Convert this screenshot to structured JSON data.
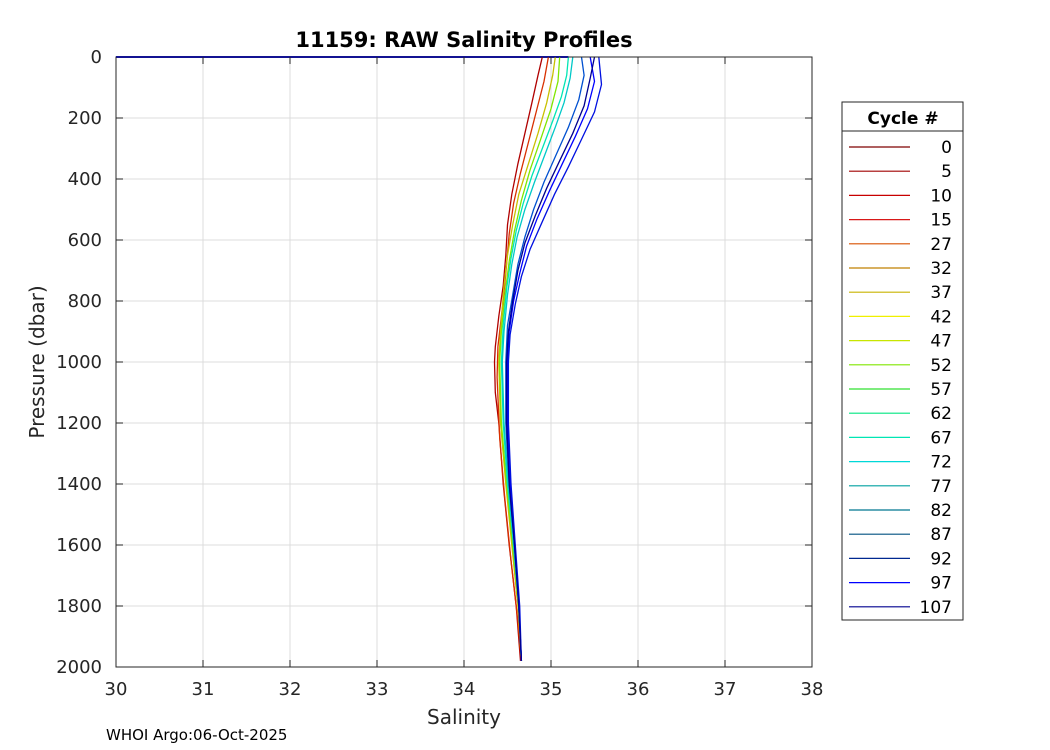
{
  "chart_data": {
    "type": "line",
    "title": "11159: RAW Salinity Profiles",
    "xlabel": "Salinity",
    "ylabel": "Pressure (dbar)",
    "xlim": [
      30,
      38
    ],
    "ylim": [
      0,
      2000
    ],
    "y_reversed": true,
    "grid": true,
    "x_ticks": [
      "30",
      "31",
      "32",
      "33",
      "34",
      "35",
      "36",
      "37",
      "38"
    ],
    "y_ticks": [
      "0",
      "200",
      "400",
      "600",
      "800",
      "1000",
      "1200",
      "1400",
      "1600",
      "1800",
      "2000"
    ],
    "legend": {
      "title": "Cycle #",
      "placement": "right",
      "entries": [
        {
          "label": "0",
          "color": "#7f0000"
        },
        {
          "label": "5",
          "color": "#a00000"
        },
        {
          "label": "10",
          "color": "#c80000"
        },
        {
          "label": "15",
          "color": "#d81818"
        },
        {
          "label": "27",
          "color": "#d85000"
        },
        {
          "label": "32",
          "color": "#c08000"
        },
        {
          "label": "37",
          "color": "#c8b400"
        },
        {
          "label": "42",
          "color": "#f0f000"
        },
        {
          "label": "47",
          "color": "#c8e600"
        },
        {
          "label": "52",
          "color": "#80e600"
        },
        {
          "label": "57",
          "color": "#30e030"
        },
        {
          "label": "62",
          "color": "#00e680"
        },
        {
          "label": "67",
          "color": "#00e6b4"
        },
        {
          "label": "72",
          "color": "#00d8d8"
        },
        {
          "label": "77",
          "color": "#00a0a0"
        },
        {
          "label": "82",
          "color": "#007890"
        },
        {
          "label": "87",
          "color": "#005080"
        },
        {
          "label": "92",
          "color": "#002890"
        },
        {
          "label": "97",
          "color": "#0000ff"
        },
        {
          "label": "107",
          "color": "#00008f"
        }
      ]
    },
    "series": [
      {
        "cycle_group": "early",
        "color": "#b00000",
        "points": [
          [
            34.9,
            0
          ],
          [
            34.85,
            60
          ],
          [
            34.78,
            150
          ],
          [
            34.7,
            250
          ],
          [
            34.62,
            350
          ],
          [
            34.55,
            450
          ],
          [
            34.5,
            550
          ],
          [
            34.48,
            650
          ],
          [
            34.45,
            750
          ],
          [
            34.4,
            850
          ],
          [
            34.36,
            950
          ],
          [
            34.35,
            1000
          ],
          [
            34.36,
            1100
          ],
          [
            34.4,
            1200
          ],
          [
            34.45,
            1400
          ],
          [
            34.52,
            1600
          ],
          [
            34.6,
            1800
          ],
          [
            34.65,
            1980
          ]
        ]
      },
      {
        "cycle_group": "early",
        "color": "#d83000",
        "points": [
          [
            34.97,
            0
          ],
          [
            34.92,
            80
          ],
          [
            34.83,
            180
          ],
          [
            34.74,
            280
          ],
          [
            34.65,
            380
          ],
          [
            34.57,
            480
          ],
          [
            34.52,
            580
          ],
          [
            34.49,
            680
          ],
          [
            34.45,
            800
          ],
          [
            34.39,
            950
          ],
          [
            34.38,
            1050
          ],
          [
            34.41,
            1250
          ],
          [
            34.47,
            1450
          ],
          [
            34.54,
            1650
          ],
          [
            34.62,
            1850
          ],
          [
            34.66,
            1980
          ]
        ]
      },
      {
        "cycle_group": "mid",
        "color": "#c8c000",
        "points": [
          [
            35.05,
            0
          ],
          [
            35.02,
            60
          ],
          [
            34.95,
            150
          ],
          [
            34.85,
            250
          ],
          [
            34.74,
            350
          ],
          [
            34.63,
            450
          ],
          [
            34.56,
            550
          ],
          [
            34.5,
            650
          ],
          [
            34.46,
            750
          ],
          [
            34.42,
            900
          ],
          [
            34.4,
            1000
          ],
          [
            34.42,
            1200
          ],
          [
            34.48,
            1400
          ],
          [
            34.55,
            1600
          ],
          [
            34.62,
            1800
          ],
          [
            34.66,
            1980
          ]
        ]
      },
      {
        "cycle_group": "mid",
        "color": "#80e600",
        "points": [
          [
            35.1,
            0
          ],
          [
            35.08,
            80
          ],
          [
            35.0,
            170
          ],
          [
            34.88,
            270
          ],
          [
            34.76,
            370
          ],
          [
            34.66,
            470
          ],
          [
            34.58,
            570
          ],
          [
            34.52,
            670
          ],
          [
            34.47,
            780
          ],
          [
            34.43,
            900
          ],
          [
            34.41,
            1000
          ],
          [
            34.43,
            1200
          ],
          [
            34.49,
            1400
          ],
          [
            34.56,
            1600
          ],
          [
            34.63,
            1800
          ],
          [
            34.66,
            1980
          ]
        ]
      },
      {
        "cycle_group": "mid",
        "color": "#00e6b4",
        "points": [
          [
            35.2,
            0
          ],
          [
            35.18,
            60
          ],
          [
            35.12,
            130
          ],
          [
            35.02,
            210
          ],
          [
            34.9,
            300
          ],
          [
            34.78,
            390
          ],
          [
            34.68,
            480
          ],
          [
            34.6,
            570
          ],
          [
            34.54,
            660
          ],
          [
            34.49,
            760
          ],
          [
            34.45,
            880
          ],
          [
            34.43,
            1000
          ],
          [
            34.45,
            1200
          ],
          [
            34.5,
            1400
          ],
          [
            34.57,
            1600
          ],
          [
            34.63,
            1800
          ],
          [
            34.66,
            1980
          ]
        ]
      },
      {
        "cycle_group": "mid",
        "color": "#00c8c8",
        "points": [
          [
            35.25,
            0
          ],
          [
            35.22,
            70
          ],
          [
            35.15,
            150
          ],
          [
            35.05,
            230
          ],
          [
            34.93,
            320
          ],
          [
            34.81,
            410
          ],
          [
            34.7,
            500
          ],
          [
            34.61,
            590
          ],
          [
            34.55,
            680
          ],
          [
            34.5,
            780
          ],
          [
            34.46,
            900
          ],
          [
            34.44,
            1000
          ],
          [
            34.46,
            1200
          ],
          [
            34.51,
            1400
          ],
          [
            34.57,
            1600
          ],
          [
            34.63,
            1800
          ],
          [
            34.66,
            1980
          ]
        ]
      },
      {
        "cycle_group": "late",
        "color": "#0050d0",
        "points": [
          [
            35.35,
            0
          ],
          [
            35.38,
            60
          ],
          [
            35.32,
            140
          ],
          [
            35.2,
            230
          ],
          [
            35.06,
            320
          ],
          [
            34.92,
            410
          ],
          [
            34.8,
            500
          ],
          [
            34.7,
            590
          ],
          [
            34.62,
            680
          ],
          [
            34.56,
            780
          ],
          [
            34.5,
            880
          ],
          [
            34.48,
            1000
          ],
          [
            34.48,
            1200
          ],
          [
            34.52,
            1400
          ],
          [
            34.58,
            1600
          ],
          [
            34.63,
            1800
          ],
          [
            34.66,
            1980
          ]
        ]
      },
      {
        "cycle_group": "late",
        "color": "#0000ff",
        "points": [
          [
            35.45,
            0
          ],
          [
            35.5,
            80
          ],
          [
            35.42,
            170
          ],
          [
            35.28,
            260
          ],
          [
            35.13,
            350
          ],
          [
            34.98,
            440
          ],
          [
            34.84,
            530
          ],
          [
            34.72,
            620
          ],
          [
            34.64,
            710
          ],
          [
            34.57,
            800
          ],
          [
            34.52,
            900
          ],
          [
            34.5,
            1000
          ],
          [
            34.5,
            1200
          ],
          [
            34.53,
            1400
          ],
          [
            34.58,
            1600
          ],
          [
            34.63,
            1800
          ],
          [
            34.66,
            1980
          ]
        ]
      },
      {
        "cycle_group": "late",
        "color": "#0010e0",
        "points": [
          [
            35.55,
            0
          ],
          [
            35.58,
            90
          ],
          [
            35.5,
            180
          ],
          [
            35.35,
            270
          ],
          [
            35.2,
            360
          ],
          [
            35.04,
            450
          ],
          [
            34.9,
            540
          ],
          [
            34.76,
            630
          ],
          [
            34.66,
            720
          ],
          [
            34.59,
            810
          ],
          [
            34.53,
            910
          ],
          [
            34.51,
            1000
          ],
          [
            34.51,
            1200
          ],
          [
            34.54,
            1400
          ],
          [
            34.59,
            1600
          ],
          [
            34.64,
            1800
          ],
          [
            34.66,
            1980
          ]
        ]
      },
      {
        "cycle_group": "late",
        "color": "#00008f",
        "points": [
          [
            35.5,
            0
          ],
          [
            35.45,
            70
          ],
          [
            35.38,
            160
          ],
          [
            35.25,
            250
          ],
          [
            35.1,
            340
          ],
          [
            34.95,
            430
          ],
          [
            34.82,
            520
          ],
          [
            34.7,
            610
          ],
          [
            34.62,
            700
          ],
          [
            34.56,
            800
          ],
          [
            34.51,
            900
          ],
          [
            34.49,
            1000
          ],
          [
            34.49,
            1200
          ],
          [
            34.52,
            1400
          ],
          [
            34.58,
            1600
          ],
          [
            34.63,
            1800
          ],
          [
            34.66,
            1980
          ]
        ]
      }
    ]
  },
  "footer": "WHOI Argo:06-Oct-2025"
}
